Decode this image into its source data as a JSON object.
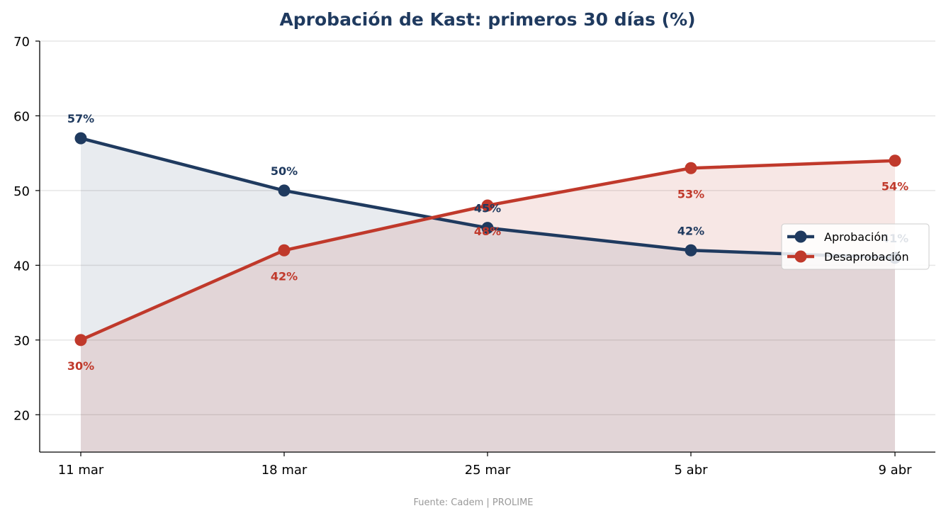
{
  "chart_data": {
    "type": "line",
    "title": "Aprobación de Kast: primeros 30 días (%)",
    "categories": [
      "11 mar",
      "18 mar",
      "25 mar",
      "5 abr",
      "9 abr"
    ],
    "series": [
      {
        "name": "Aprobación",
        "values": [
          57,
          50,
          45,
          42,
          41
        ],
        "labels": [
          "57%",
          "50%",
          "45%",
          "42%",
          "41%"
        ],
        "color": "#1f3a5f",
        "fill": "#e8e9ee"
      },
      {
        "name": "Desaprobación",
        "values": [
          30,
          42,
          48,
          53,
          54
        ],
        "labels": [
          "30%",
          "42%",
          "48%",
          "53%",
          "54%"
        ],
        "color": "#c0392b",
        "fill": "#f5e4e3"
      }
    ],
    "ylim": [
      15,
      70
    ],
    "yticks": [
      20,
      30,
      40,
      50,
      60,
      70
    ],
    "grid": true,
    "legend": "right",
    "source": "Fuente: Cadem  |  PROLIME"
  }
}
